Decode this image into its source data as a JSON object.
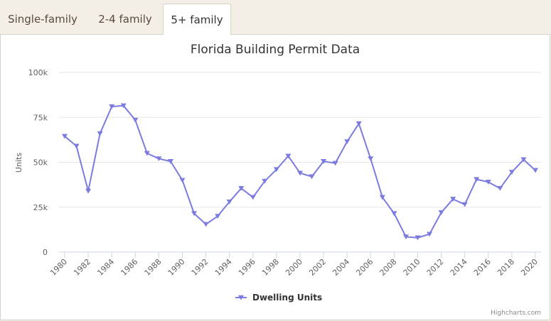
{
  "tabs": [
    {
      "label": "Single-family",
      "active": false
    },
    {
      "label": "2-4 family",
      "active": false
    },
    {
      "label": "5+ family",
      "active": true
    }
  ],
  "credits": "Highcharts.com",
  "colors": {
    "series": "#7b7be0",
    "grid": "#e6e6e6",
    "tab_bg": "#f3efe6"
  },
  "chart_data": {
    "type": "line",
    "title": "Florida Building Permit Data",
    "ylabel": "Units",
    "xlabel": "",
    "ylim": [
      0,
      100000
    ],
    "y_ticks": [
      0,
      25000,
      50000,
      75000,
      100000
    ],
    "y_tick_labels": [
      "0",
      "25k",
      "50k",
      "75k",
      "100k"
    ],
    "x_tick_labels": [
      "1980",
      "1982",
      "1984",
      "1986",
      "1988",
      "1990",
      "1992",
      "1994",
      "1996",
      "1998",
      "2000",
      "2002",
      "2004",
      "2006",
      "2008",
      "2010",
      "2012",
      "2014",
      "2016",
      "2018",
      "2020"
    ],
    "x": [
      1980,
      1981,
      1982,
      1983,
      1984,
      1985,
      1986,
      1987,
      1988,
      1989,
      1990,
      1991,
      1992,
      1993,
      1994,
      1995,
      1996,
      1997,
      1998,
      1999,
      2000,
      2001,
      2002,
      2003,
      2004,
      2005,
      2006,
      2007,
      2008,
      2009,
      2010,
      2011,
      2012,
      2013,
      2014,
      2015,
      2016,
      2017,
      2018,
      2019,
      2020
    ],
    "series": [
      {
        "name": "Dwelling Units",
        "marker": "triangle-down",
        "values": [
          64500,
          59000,
          34000,
          66000,
          81000,
          81500,
          73500,
          55000,
          52000,
          50500,
          40000,
          21500,
          15500,
          20000,
          28000,
          35500,
          30500,
          39500,
          46000,
          53500,
          44000,
          42000,
          50500,
          49500,
          61500,
          71500,
          52000,
          30500,
          21500,
          8500,
          8000,
          10000,
          22000,
          29500,
          26500,
          40500,
          39000,
          35500,
          44500,
          51500,
          45500
        ]
      }
    ],
    "legend": "bottom-center",
    "grid": true
  }
}
